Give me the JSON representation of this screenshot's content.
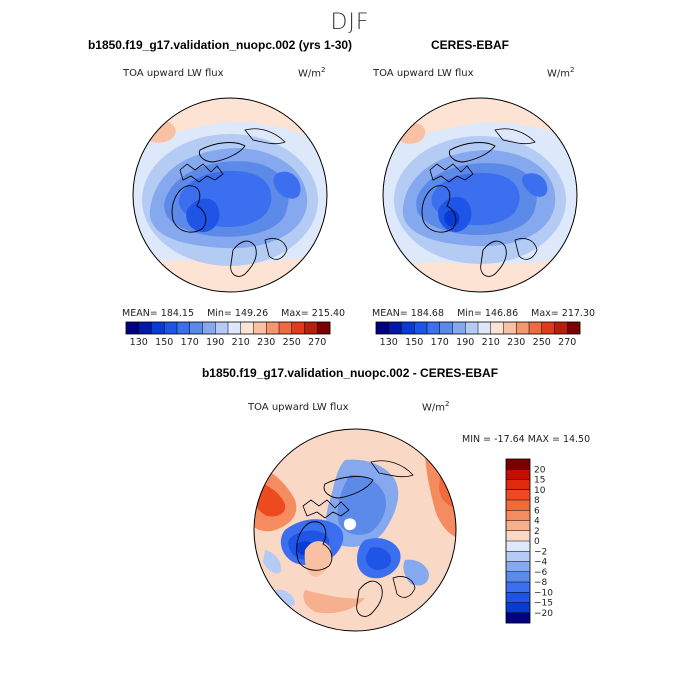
{
  "season": "DJF",
  "panels": [
    {
      "title": "b1850.f19_g17.validation_nuopc.002 (yrs 1-30)",
      "var_label": "TOA upward LW flux",
      "units_base": "W/m",
      "units_exp": "2",
      "stats": {
        "mean": "MEAN= 184.15",
        "min": "Min= 149.26",
        "max": "Max= 215.40"
      }
    },
    {
      "title": "CERES-EBAF",
      "var_label": "TOA upward LW flux",
      "units_base": "W/m",
      "units_exp": "2",
      "stats": {
        "mean": "MEAN= 184.68",
        "min": "Min= 146.86",
        "max": "Max= 217.30"
      }
    }
  ],
  "diff": {
    "title": "b1850.f19_g17.validation_nuopc.002 - CERES-EBAF",
    "var_label": "TOA upward LW flux",
    "units_base": "W/m",
    "units_exp": "2",
    "minmax": "MIN = -17.64  MAX =  14.50"
  },
  "chart_data": [
    {
      "type": "heatmap",
      "projection": "north-polar-stereographic",
      "title": "b1850.f19_g17.validation_nuopc.002 (yrs 1-30)",
      "variable": "TOA upward LW flux",
      "units": "W/m2",
      "colorbar": {
        "orientation": "horizontal",
        "levels": [
          130,
          140,
          150,
          160,
          170,
          180,
          190,
          200,
          210,
          220,
          230,
          240,
          250,
          260,
          270
        ],
        "labels": [
          "130",
          "150",
          "170",
          "190",
          "210",
          "230",
          "250",
          "270"
        ],
        "colors": [
          "#000080",
          "#0018a8",
          "#0a3ad4",
          "#1e55e6",
          "#3c6ef0",
          "#5c8ae8",
          "#85a8ee",
          "#b4cbf4",
          "#dde8fa",
          "#fde3d4",
          "#f9c0a4",
          "#f4966f",
          "#ef6a41",
          "#e03a1c",
          "#b91d0b",
          "#7b0000"
        ]
      },
      "mean": 184.15,
      "min": 149.26,
      "max": 215.4
    },
    {
      "type": "heatmap",
      "projection": "north-polar-stereographic",
      "title": "CERES-EBAF",
      "variable": "TOA upward LW flux",
      "units": "W/m2",
      "colorbar": {
        "orientation": "horizontal",
        "levels": [
          130,
          140,
          150,
          160,
          170,
          180,
          190,
          200,
          210,
          220,
          230,
          240,
          250,
          260,
          270
        ],
        "labels": [
          "130",
          "150",
          "170",
          "190",
          "210",
          "230",
          "250",
          "270"
        ],
        "colors": [
          "#000080",
          "#0018a8",
          "#0a3ad4",
          "#1e55e6",
          "#3c6ef0",
          "#5c8ae8",
          "#85a8ee",
          "#b4cbf4",
          "#dde8fa",
          "#fde3d4",
          "#f9c0a4",
          "#f4966f",
          "#ef6a41",
          "#e03a1c",
          "#b91d0b",
          "#7b0000"
        ]
      },
      "mean": 184.68,
      "min": 146.86,
      "max": 217.3
    },
    {
      "type": "heatmap",
      "projection": "north-polar-stereographic",
      "title": "b1850.f19_g17.validation_nuopc.002 - CERES-EBAF",
      "variable": "TOA upward LW flux",
      "units": "W/m2",
      "colorbar": {
        "orientation": "vertical",
        "labels": [
          "20",
          "15",
          "10",
          "8",
          "6",
          "4",
          "2",
          "0",
          "−2",
          "−4",
          "−6",
          "−8",
          "−10",
          "−15",
          "−20"
        ],
        "colors": [
          "#7b0000",
          "#c40f00",
          "#e02a10",
          "#ee4a20",
          "#f26a3c",
          "#f48c60",
          "#f7b08e",
          "#fad8c6",
          "#dde8fa",
          "#b4cbf4",
          "#85a8ee",
          "#5c8ae8",
          "#3c6ef0",
          "#1e55e6",
          "#0a3ad4",
          "#000080"
        ]
      },
      "min": -17.64,
      "max": 14.5
    }
  ]
}
